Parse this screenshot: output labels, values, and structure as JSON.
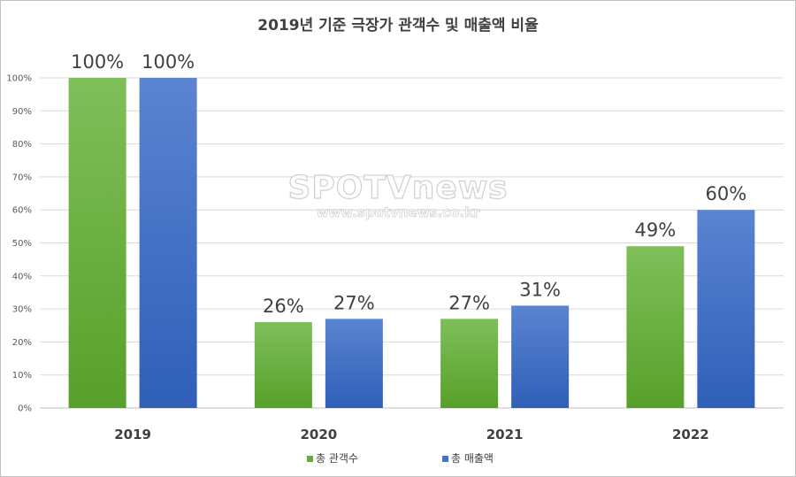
{
  "watermark": {
    "brand": "SPOTVnews",
    "url": "www.spotvnews.co.kr"
  },
  "chart_data": {
    "type": "bar",
    "title": "2019년 기준 극장가 관객수 및 매출액 비율",
    "xlabel": "",
    "ylabel": "",
    "categories": [
      "2019",
      "2020",
      "2021",
      "2022"
    ],
    "yticks": [
      "0%",
      "10%",
      "20%",
      "30%",
      "40%",
      "50%",
      "60%",
      "70%",
      "80%",
      "90%",
      "100%"
    ],
    "ylim": [
      0,
      100
    ],
    "grid": true,
    "legend_position": "bottom",
    "series": [
      {
        "name": "총 관객수",
        "values": [
          100,
          26,
          27,
          49
        ],
        "labels": [
          "100%",
          "26%",
          "27%",
          "49%"
        ],
        "color": "#6aaa3c"
      },
      {
        "name": "총 매출액",
        "values": [
          100,
          27,
          31,
          60
        ],
        "labels": [
          "100%",
          "27%",
          "31%",
          "60%"
        ],
        "color": "#4472c4"
      }
    ]
  }
}
